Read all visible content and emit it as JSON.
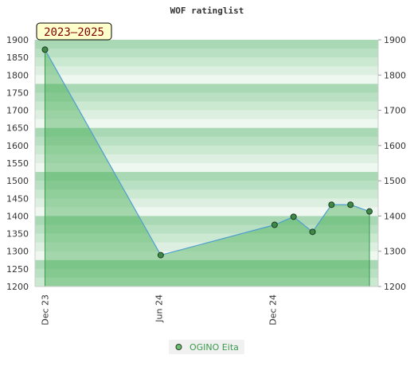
{
  "chart_data": {
    "type": "area",
    "title": "WOF ratinglist",
    "badge": "2023–2025",
    "ylim": [
      1200,
      1900
    ],
    "y_ticks": [
      1200,
      1250,
      1300,
      1350,
      1400,
      1450,
      1500,
      1550,
      1600,
      1650,
      1700,
      1750,
      1800,
      1850,
      1900
    ],
    "y_ticks_right": [
      1200,
      1300,
      1400,
      1500,
      1600,
      1700,
      1800,
      1900
    ],
    "x_ticks": [
      {
        "label": "Dec 23",
        "month": 0
      },
      {
        "label": "Jun 24",
        "month": 6
      },
      {
        "label": "Dec 24",
        "month": 12
      }
    ],
    "x_range_months": [
      0,
      17.2
    ],
    "series": [
      {
        "name": "OGINO Eita",
        "color": "#4f9fd0",
        "fill": "#3fa94e",
        "marker": "#3c8a45",
        "points": [
          {
            "month": 0,
            "value": 1872
          },
          {
            "month": 6.1,
            "value": 1289
          },
          {
            "month": 12.1,
            "value": 1375
          },
          {
            "month": 13.1,
            "value": 1398
          },
          {
            "month": 14.1,
            "value": 1355
          },
          {
            "month": 15.1,
            "value": 1432
          },
          {
            "month": 16.1,
            "value": 1432
          },
          {
            "month": 17.1,
            "value": 1413
          }
        ]
      }
    ],
    "legend_position": "bottom-center"
  }
}
